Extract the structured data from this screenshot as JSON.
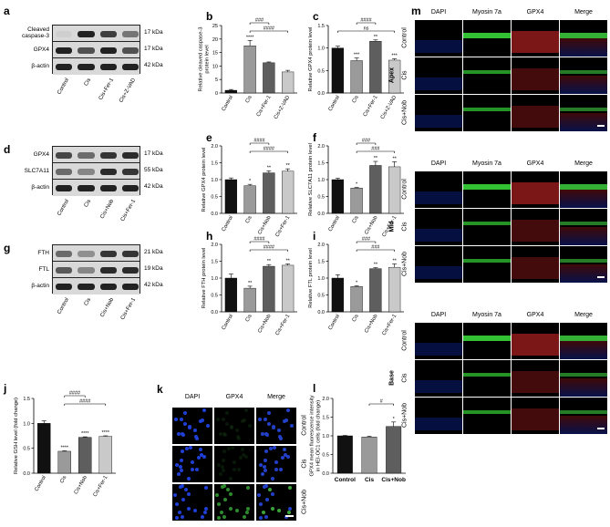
{
  "panels": {
    "a": {
      "letter": "a",
      "rows": [
        "Cleaved caspase-3",
        "GPX4",
        "β-actin"
      ],
      "kda": [
        "17 kDa",
        "17 kDa",
        "42 kDa"
      ],
      "lanes": [
        "Control",
        "Cis",
        "Cis+Fer-1",
        "Cis+Z-VAD"
      ]
    },
    "d": {
      "letter": "d",
      "rows": [
        "GPX4",
        "SLC7A11",
        "β-actin"
      ],
      "kda": [
        "17 kDa",
        "55 kDa",
        "42 kDa"
      ],
      "lanes": [
        "Control",
        "Cis",
        "Cis+Nob",
        "Cis+Fer-1"
      ]
    },
    "g": {
      "letter": "g",
      "rows": [
        "FTH",
        "FTL",
        "β-actin"
      ],
      "kda": [
        "21 kDa",
        "19 kDa",
        "42 kDa"
      ],
      "lanes": [
        "Control",
        "Cis",
        "Cis+Nob",
        "Cis+Fer-1"
      ]
    },
    "k": {
      "letter": "k",
      "cols": [
        "DAPI",
        "GPX4",
        "Merge"
      ],
      "rows": [
        "Control",
        "Cis",
        "Cis+Nob"
      ]
    },
    "m": {
      "letter": "m",
      "cols": [
        "DAPI",
        "Myosin 7a",
        "GPX4",
        "Merge"
      ],
      "regions": [
        "Apex",
        "Mid",
        "Base"
      ],
      "rows": [
        "Control",
        "Cis",
        "Cis+Nob"
      ]
    }
  },
  "chart_data": [
    {
      "panel": "b",
      "type": "bar",
      "ylabel": "Relative cleaved caspase-3 protein level",
      "categories": [
        "Control",
        "Cis",
        "Cis+Fer-1",
        "Cis+Z-VAD"
      ],
      "values": [
        1,
        17.5,
        11.2,
        7.8
      ],
      "errors": [
        0.3,
        2.0,
        0.3,
        0.6
      ],
      "ylim": [
        0,
        25
      ],
      "yticks": [
        0,
        5,
        10,
        15,
        20,
        25
      ],
      "stars": [
        "",
        "****",
        "",
        ""
      ],
      "brackets": [
        {
          "from": 1,
          "to": 3,
          "label": "####"
        },
        {
          "from": 1,
          "to": 2,
          "label": "###"
        }
      ],
      "colors": [
        "#111111",
        "#9a9a9a",
        "#5e5e5e",
        "#c9c9c9"
      ]
    },
    {
      "panel": "c",
      "type": "bar",
      "ylabel": "Relative GPX4 protein level",
      "categories": [
        "Control",
        "Cis",
        "Cis+Fer-1",
        "Cis+Z-VAD"
      ],
      "values": [
        1.0,
        0.72,
        1.15,
        0.73
      ],
      "errors": [
        0.04,
        0.06,
        0.03,
        0.03
      ],
      "ylim": [
        0,
        1.5
      ],
      "yticks": [
        0,
        0.5,
        1.0,
        1.5
      ],
      "ytickLabels": [
        "0.0",
        "0.5",
        "1.0",
        "1.5"
      ],
      "stars": [
        "",
        "***",
        "**",
        "***"
      ],
      "brackets": [
        {
          "from": 0,
          "to": 3,
          "label": "ns"
        },
        {
          "from": 1,
          "to": 2,
          "label": "####"
        }
      ],
      "colors": [
        "#111111",
        "#9a9a9a",
        "#5e5e5e",
        "#c9c9c9"
      ]
    },
    {
      "panel": "e",
      "type": "bar",
      "ylabel": "Relative GPX4 protein level",
      "categories": [
        "Control",
        "Cis",
        "Cis+Nob",
        "Cis+Fer-1"
      ],
      "values": [
        1.0,
        0.82,
        1.2,
        1.25
      ],
      "errors": [
        0.05,
        0.04,
        0.06,
        0.07
      ],
      "ylim": [
        0,
        2.0
      ],
      "yticks": [
        0,
        0.5,
        1.0,
        1.5,
        2.0
      ],
      "ytickLabels": [
        "0.0",
        "0.5",
        "1.0",
        "1.5",
        "2.0"
      ],
      "stars": [
        "",
        "*",
        "**",
        "**"
      ],
      "brackets": [
        {
          "from": 1,
          "to": 3,
          "label": "####"
        },
        {
          "from": 1,
          "to": 2,
          "label": "####"
        }
      ],
      "colors": [
        "#111111",
        "#9a9a9a",
        "#5e5e5e",
        "#c9c9c9"
      ]
    },
    {
      "panel": "f",
      "type": "bar",
      "ylabel": "Relative SLC7A11 protein level",
      "categories": [
        "Control",
        "Cis",
        "Cis+Nob",
        "Cis+Fer-1"
      ],
      "values": [
        1.0,
        0.75,
        1.42,
        1.38
      ],
      "errors": [
        0.04,
        0.02,
        0.12,
        0.15
      ],
      "ylim": [
        0,
        2.0
      ],
      "yticks": [
        0,
        0.5,
        1.0,
        1.5,
        2.0
      ],
      "ytickLabels": [
        "0.0",
        "0.5",
        "1.0",
        "1.5",
        "2.0"
      ],
      "stars": [
        "",
        "*",
        "**",
        "**"
      ],
      "brackets": [
        {
          "from": 1,
          "to": 3,
          "label": "###"
        },
        {
          "from": 1,
          "to": 2,
          "label": "###"
        }
      ],
      "colors": [
        "#111111",
        "#9a9a9a",
        "#5e5e5e",
        "#c9c9c9"
      ]
    },
    {
      "panel": "h",
      "type": "bar",
      "ylabel": "Relative FTH protein level",
      "categories": [
        "Control",
        "Cis",
        "Cis+Nob",
        "Cis+Fer-1"
      ],
      "values": [
        1.0,
        0.7,
        1.35,
        1.38
      ],
      "errors": [
        0.12,
        0.06,
        0.05,
        0.04
      ],
      "ylim": [
        0,
        2.0
      ],
      "yticks": [
        0,
        0.5,
        1.0,
        1.5,
        2.0
      ],
      "ytickLabels": [
        "0.0",
        "0.5",
        "1.0",
        "1.5",
        "2.0"
      ],
      "stars": [
        "",
        "**",
        "**",
        "**"
      ],
      "brackets": [
        {
          "from": 1,
          "to": 3,
          "label": "####"
        },
        {
          "from": 1,
          "to": 2,
          "label": "####"
        }
      ],
      "colors": [
        "#111111",
        "#9a9a9a",
        "#5e5e5e",
        "#c9c9c9"
      ]
    },
    {
      "panel": "i",
      "type": "bar",
      "ylabel": "Relative FTL protein level",
      "categories": [
        "Control",
        "Cis",
        "Cis+Nob",
        "Cis+Fer-1"
      ],
      "values": [
        1.0,
        0.75,
        1.28,
        1.32
      ],
      "errors": [
        0.1,
        0.02,
        0.03,
        0.1
      ],
      "ylim": [
        0,
        2.0
      ],
      "yticks": [
        0,
        0.5,
        1.0,
        1.5,
        2.0
      ],
      "ytickLabels": [
        "0.0",
        "0.5",
        "1.0",
        "1.5",
        "2.0"
      ],
      "stars": [
        "",
        "*",
        "**",
        "**"
      ],
      "brackets": [
        {
          "from": 1,
          "to": 3,
          "label": "###"
        },
        {
          "from": 1,
          "to": 2,
          "label": "###"
        }
      ],
      "colors": [
        "#111111",
        "#9a9a9a",
        "#5e5e5e",
        "#c9c9c9"
      ]
    },
    {
      "panel": "j",
      "type": "bar",
      "ylabel": "Relative GSH level (fold change)",
      "categories": [
        "Control",
        "Cis",
        "Cis+Nob",
        "Cis+Fer-1"
      ],
      "values": [
        1.0,
        0.44,
        0.72,
        0.74
      ],
      "errors": [
        0.05,
        0.01,
        0.01,
        0.01
      ],
      "ylim": [
        0,
        1.5
      ],
      "yticks": [
        0,
        0.5,
        1.0,
        1.5
      ],
      "ytickLabels": [
        "0.0",
        "0.5",
        "1.0",
        "1.5"
      ],
      "stars": [
        "",
        "****",
        "****",
        "****"
      ],
      "brackets": [
        {
          "from": 1,
          "to": 3,
          "label": "####"
        },
        {
          "from": 1,
          "to": 2,
          "label": "####"
        }
      ],
      "colors": [
        "#111111",
        "#9a9a9a",
        "#5e5e5e",
        "#c9c9c9"
      ]
    },
    {
      "panel": "l",
      "type": "bar",
      "ylabel": "GPX4 mean fluorescence intensity in HEI-OC1 cells (fold change)",
      "categories": [
        "Control",
        "Cis",
        "Cis+Nob"
      ],
      "values": [
        1.0,
        0.97,
        1.25
      ],
      "errors": [
        0.01,
        0.02,
        0.12
      ],
      "ylim": [
        0,
        2.0
      ],
      "yticks": [
        0,
        0.5,
        1.0,
        1.5,
        2.0
      ],
      "ytickLabels": [
        "0.0",
        "0.5",
        "1.0",
        "1.5",
        "2.0"
      ],
      "stars": [
        "",
        "",
        "*"
      ],
      "brackets": [
        {
          "from": 1,
          "to": 2,
          "label": "#"
        }
      ],
      "colors": [
        "#111111",
        "#9a9a9a",
        "#5e5e5e"
      ],
      "horizontalTicks": true
    }
  ]
}
